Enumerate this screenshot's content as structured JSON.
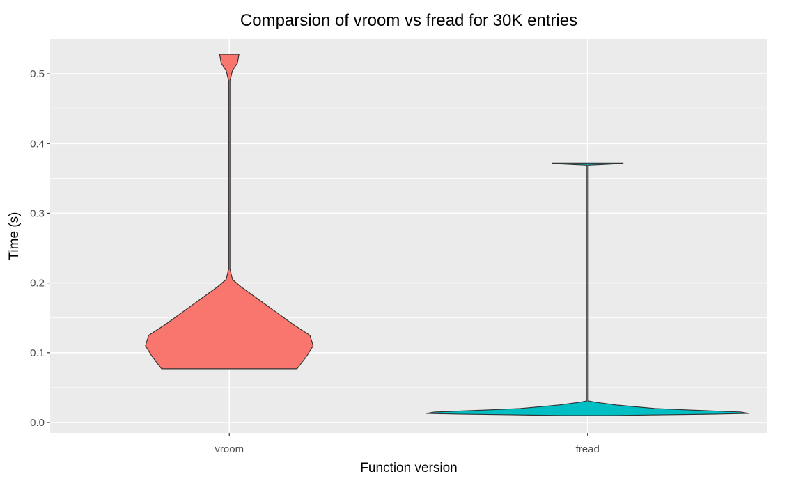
{
  "chart_data": {
    "type": "violin",
    "title": "Comparsion of vroom vs fread for 30K entries",
    "xlabel": "Function version",
    "ylabel": "Time (s)",
    "categories": [
      "vroom",
      "fread"
    ],
    "ylim": [
      -0.015,
      0.55
    ],
    "yticks": [
      0.0,
      0.1,
      0.2,
      0.3,
      0.4,
      0.5
    ],
    "ytick_labels": [
      "0.0",
      "0.1",
      "0.2",
      "0.3",
      "0.4",
      "0.5"
    ],
    "grid": true,
    "legend": "none",
    "series": [
      {
        "category": "vroom",
        "color": "#F8766D",
        "min": 0.077,
        "max": 0.528,
        "density_profile": [
          {
            "y": 0.077,
            "w": 0.42
          },
          {
            "y": 0.095,
            "w": 0.48
          },
          {
            "y": 0.11,
            "w": 0.52
          },
          {
            "y": 0.125,
            "w": 0.5
          },
          {
            "y": 0.14,
            "w": 0.4
          },
          {
            "y": 0.16,
            "w": 0.28
          },
          {
            "y": 0.18,
            "w": 0.16
          },
          {
            "y": 0.195,
            "w": 0.07
          },
          {
            "y": 0.205,
            "w": 0.02
          },
          {
            "y": 0.22,
            "w": 0.004
          },
          {
            "y": 0.49,
            "w": 0.004
          },
          {
            "y": 0.505,
            "w": 0.02
          },
          {
            "y": 0.515,
            "w": 0.05
          },
          {
            "y": 0.528,
            "w": 0.06
          }
        ]
      },
      {
        "category": "fread",
        "color": "#00BFC4",
        "min": 0.01,
        "max": 0.372,
        "density_profile": [
          {
            "y": 0.01,
            "w": 0.15
          },
          {
            "y": 0.011,
            "w": 0.48
          },
          {
            "y": 0.012,
            "w": 0.8
          },
          {
            "y": 0.013,
            "w": 1.0
          },
          {
            "y": 0.015,
            "w": 0.95
          },
          {
            "y": 0.018,
            "w": 0.62
          },
          {
            "y": 0.02,
            "w": 0.42
          },
          {
            "y": 0.025,
            "w": 0.18
          },
          {
            "y": 0.029,
            "w": 0.05
          },
          {
            "y": 0.031,
            "w": 0.004
          },
          {
            "y": 0.369,
            "w": 0.004
          },
          {
            "y": 0.371,
            "w": 0.18
          },
          {
            "y": 0.372,
            "w": 0.22
          }
        ]
      }
    ]
  }
}
